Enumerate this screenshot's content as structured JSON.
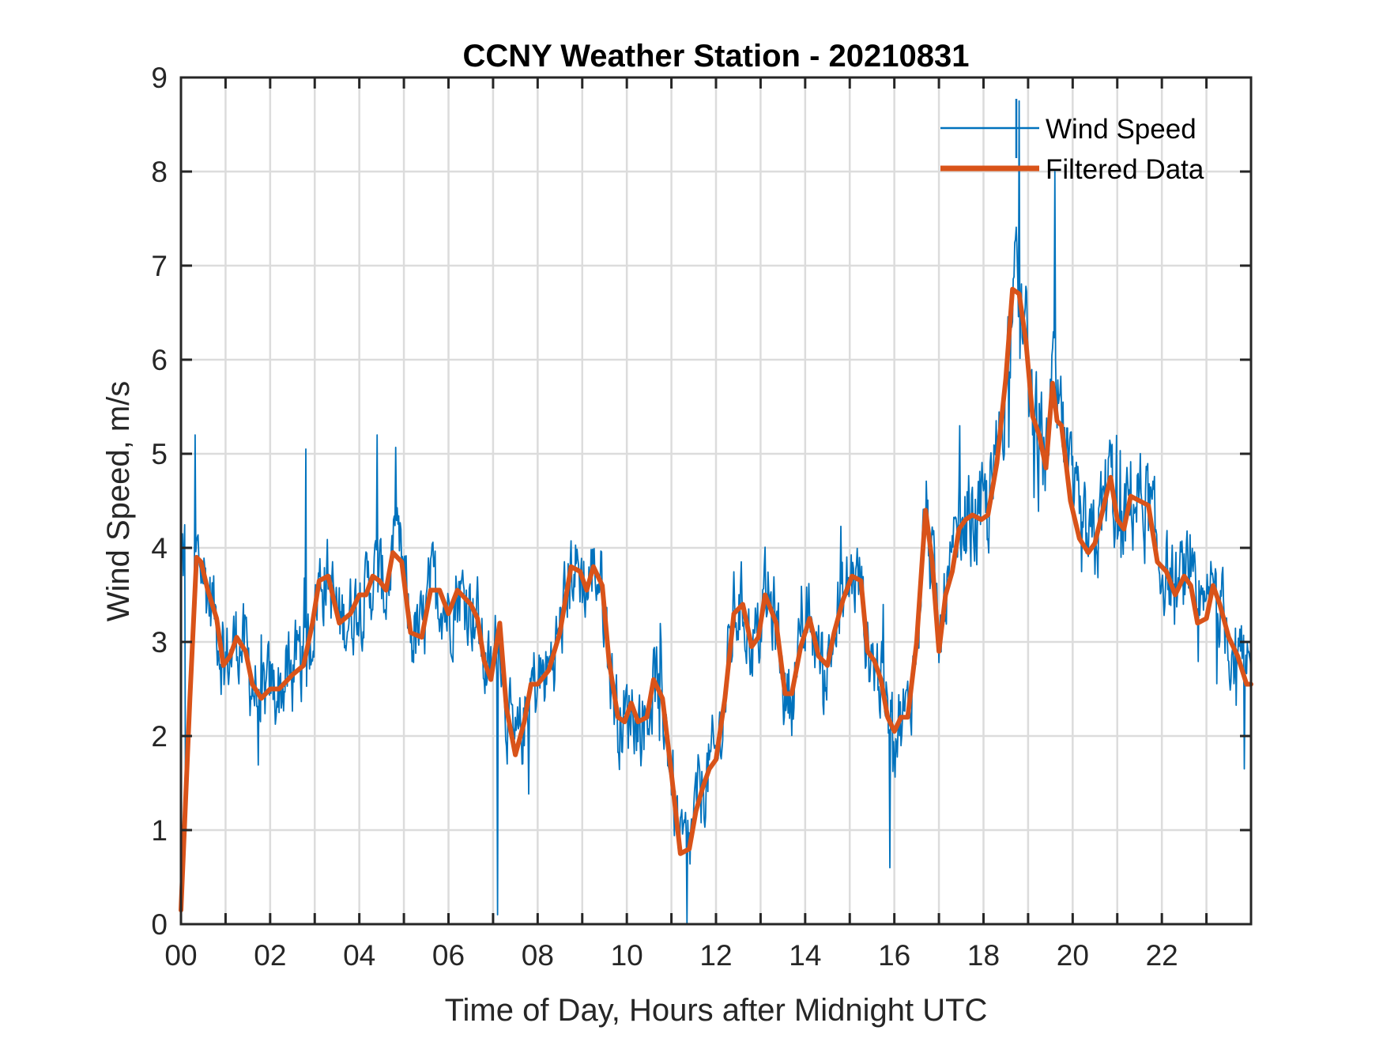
{
  "chart_data": {
    "type": "line",
    "title": "CCNY Weather Station - 20210831",
    "xlabel": "Time of Day, Hours after Midnight UTC",
    "ylabel": "Wind Speed, m/s",
    "xlim": [
      0,
      24
    ],
    "ylim": [
      0,
      9
    ],
    "grid": true,
    "legend_position": "top-right",
    "x_ticks": [
      0,
      1,
      2,
      3,
      4,
      5,
      6,
      7,
      8,
      9,
      10,
      11,
      12,
      13,
      14,
      15,
      16,
      17,
      18,
      19,
      20,
      21,
      22,
      23
    ],
    "x_tick_labels": [
      "00",
      "",
      "02",
      "",
      "04",
      "",
      "06",
      "",
      "08",
      "",
      "10",
      "",
      "12",
      "",
      "14",
      "",
      "16",
      "",
      "18",
      "",
      "20",
      "",
      "22",
      ""
    ],
    "y_ticks": [
      0,
      1,
      2,
      3,
      4,
      5,
      6,
      7,
      8,
      9
    ],
    "y_tick_labels": [
      "0",
      "1",
      "2",
      "3",
      "4",
      "5",
      "6",
      "7",
      "8",
      "9"
    ],
    "series": [
      {
        "name": "Wind Speed",
        "color": "#0072BD",
        "style": "thin-noisy",
        "noise_amplitude": 0.7,
        "extremes": [
          {
            "x": 0.32,
            "y": 5.2
          },
          {
            "x": 2.8,
            "y": 5.05
          },
          {
            "x": 4.4,
            "y": 5.2
          },
          {
            "x": 7.1,
            "y": 0.1
          },
          {
            "x": 11.35,
            "y": 0.0
          },
          {
            "x": 15.9,
            "y": 0.6
          },
          {
            "x": 18.8,
            "y": 8.75
          },
          {
            "x": 19.6,
            "y": 8.0
          },
          {
            "x": 23.85,
            "y": 1.65
          }
        ]
      },
      {
        "name": "Filtered Data",
        "color": "#D95319",
        "style": "thick",
        "x": [
          0.0,
          0.2,
          0.35,
          0.45,
          0.6,
          0.8,
          0.95,
          1.1,
          1.25,
          1.45,
          1.6,
          1.8,
          2.0,
          2.2,
          2.5,
          2.75,
          2.95,
          3.1,
          3.3,
          3.55,
          3.8,
          4.0,
          4.15,
          4.3,
          4.45,
          4.6,
          4.75,
          4.95,
          5.15,
          5.4,
          5.6,
          5.8,
          6.0,
          6.2,
          6.3,
          6.5,
          6.65,
          6.8,
          6.95,
          7.15,
          7.3,
          7.5,
          7.7,
          7.85,
          8.0,
          8.25,
          8.5,
          8.75,
          8.95,
          9.1,
          9.25,
          9.45,
          9.6,
          9.8,
          9.95,
          10.1,
          10.25,
          10.45,
          10.6,
          10.8,
          11.0,
          11.2,
          11.4,
          11.55,
          11.7,
          11.85,
          12.0,
          12.2,
          12.4,
          12.6,
          12.8,
          12.95,
          13.1,
          13.35,
          13.55,
          13.7,
          13.9,
          14.1,
          14.3,
          14.5,
          14.65,
          14.85,
          15.05,
          15.25,
          15.4,
          15.55,
          15.7,
          15.85,
          16.0,
          16.15,
          16.3,
          16.5,
          16.7,
          16.85,
          17.0,
          17.15,
          17.3,
          17.45,
          17.6,
          17.75,
          17.95,
          18.1,
          18.3,
          18.5,
          18.65,
          18.8,
          18.95,
          19.1,
          19.25,
          19.4,
          19.55,
          19.65,
          19.75,
          19.95,
          20.15,
          20.35,
          20.5,
          20.7,
          20.85,
          21.0,
          21.15,
          21.3,
          21.5,
          21.7,
          21.9,
          22.1,
          22.3,
          22.5,
          22.65,
          22.8,
          23.0,
          23.15,
          23.3,
          23.5,
          23.7,
          23.9,
          24.0
        ],
        "y": [
          0.15,
          2.4,
          3.9,
          3.85,
          3.55,
          3.25,
          2.75,
          2.85,
          3.05,
          2.9,
          2.55,
          2.4,
          2.5,
          2.5,
          2.65,
          2.75,
          3.2,
          3.65,
          3.7,
          3.2,
          3.3,
          3.5,
          3.5,
          3.7,
          3.65,
          3.55,
          3.95,
          3.85,
          3.1,
          3.05,
          3.55,
          3.55,
          3.3,
          3.55,
          3.5,
          3.4,
          3.25,
          2.8,
          2.6,
          3.2,
          2.3,
          1.8,
          2.15,
          2.55,
          2.55,
          2.7,
          3.1,
          3.8,
          3.75,
          3.55,
          3.8,
          3.6,
          2.8,
          2.2,
          2.15,
          2.35,
          2.15,
          2.2,
          2.6,
          2.4,
          1.6,
          0.75,
          0.8,
          1.2,
          1.45,
          1.65,
          1.75,
          2.4,
          3.3,
          3.4,
          2.95,
          3.05,
          3.5,
          3.2,
          2.45,
          2.45,
          2.95,
          3.25,
          2.85,
          2.75,
          3.1,
          3.45,
          3.7,
          3.65,
          2.9,
          2.8,
          2.6,
          2.2,
          2.05,
          2.2,
          2.2,
          3.0,
          4.4,
          3.85,
          2.9,
          3.5,
          3.75,
          4.2,
          4.3,
          4.35,
          4.3,
          4.35,
          4.9,
          5.8,
          6.75,
          6.7,
          6.2,
          5.4,
          5.2,
          4.85,
          5.75,
          5.35,
          5.3,
          4.5,
          4.1,
          3.95,
          4.05,
          4.45,
          4.75,
          4.3,
          4.2,
          4.55,
          4.5,
          4.45,
          3.85,
          3.75,
          3.5,
          3.7,
          3.6,
          3.2,
          3.25,
          3.6,
          3.4,
          3.05,
          2.85,
          2.55,
          2.55
        ]
      }
    ]
  }
}
